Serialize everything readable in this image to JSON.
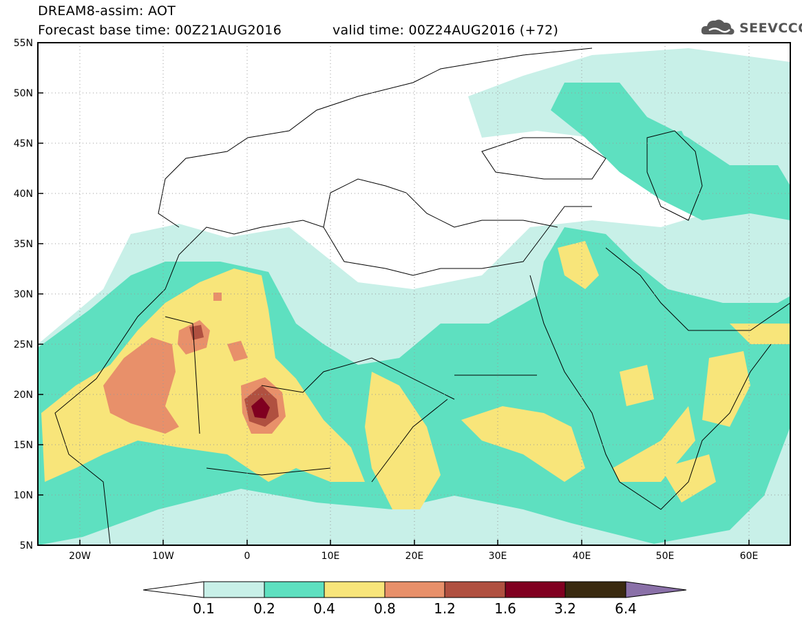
{
  "header": {
    "title": "DREAM8-assim: AOT",
    "base_time": "Forecast base time: 00Z21AUG2016",
    "valid_time": "valid time: 00Z24AUG2016 (+72)"
  },
  "logo": {
    "text": "SEEVCCC",
    "icon": "cloud-logo-icon"
  },
  "map": {
    "lat_labels": [
      "55N",
      "50N",
      "45N",
      "40N",
      "35N",
      "30N",
      "25N",
      "20N",
      "15N",
      "10N",
      "5N"
    ],
    "lon_labels": [
      "20W",
      "10W",
      "0",
      "10E",
      "20E",
      "30E",
      "40E",
      "50E",
      "60E"
    ],
    "extent": {
      "lon_min": -25,
      "lon_max": 65,
      "lat_min": 5,
      "lat_max": 55
    },
    "grid": "dotted"
  },
  "colorbar": {
    "labels": [
      "0.1",
      "0.2",
      "0.4",
      "0.8",
      "1.2",
      "1.6",
      "3.2",
      "6.4"
    ],
    "colors": [
      "#ffffff",
      "#c8f0e8",
      "#5ee0c0",
      "#f8e57a",
      "#e8906a",
      "#b05040",
      "#800020",
      "#3a2a10",
      "#8a70a8"
    ]
  }
}
